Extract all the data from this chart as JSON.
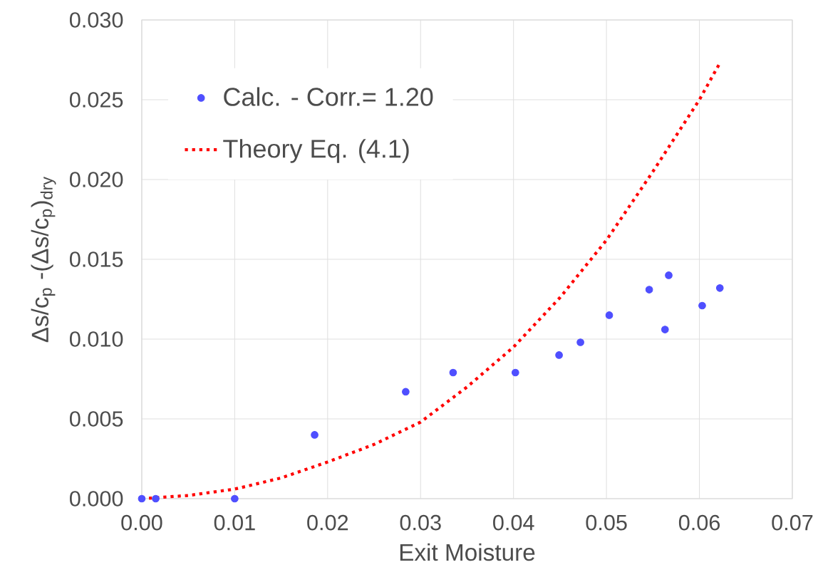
{
  "chart_data": {
    "type": "scatter",
    "xlabel": "Exit Moisture",
    "ylabel": "Δs/c$_{p}$ -(Δs/c$_{p}$)$_{dry}$",
    "xlim": [
      0,
      0.07
    ],
    "ylim": [
      0,
      0.03
    ],
    "xticks": [
      {
        "value": 0,
        "label": "0.00"
      },
      {
        "value": 0.01,
        "label": "0.01"
      },
      {
        "value": 0.02,
        "label": "0.02"
      },
      {
        "value": 0.03,
        "label": "0.03"
      },
      {
        "value": 0.04,
        "label": "0.04"
      },
      {
        "value": 0.05,
        "label": "0.05"
      },
      {
        "value": 0.06,
        "label": "0.06"
      },
      {
        "value": 0.07,
        "label": "0.07"
      }
    ],
    "yticks": [
      {
        "value": 0,
        "label": "0.000"
      },
      {
        "value": 0.005,
        "label": "0.005"
      },
      {
        "value": 0.01,
        "label": "0.010"
      },
      {
        "value": 0.015,
        "label": "0.015"
      },
      {
        "value": 0.02,
        "label": "0.020"
      },
      {
        "value": 0.025,
        "label": "0.025"
      },
      {
        "value": 0.03,
        "label": "0.030"
      }
    ],
    "grid": true,
    "legend": "top left",
    "series": [
      {
        "name": "Calc. - Corr.= 1.20",
        "marker": "circle",
        "color": "#4f4fff",
        "x": [
          0.0,
          0.0015,
          0.01,
          0.0186,
          0.0284,
          0.0335,
          0.0402,
          0.0449,
          0.0472,
          0.0503,
          0.0546,
          0.0563,
          0.0567,
          0.0603,
          0.0622
        ],
        "values": [
          0.0,
          0.0,
          0.0,
          0.004,
          0.0067,
          0.0079,
          0.0079,
          0.009,
          0.0098,
          0.0115,
          0.0131,
          0.0106,
          0.014,
          0.0121,
          0.0132
        ]
      },
      {
        "name": "Theory Eq. (4.1)",
        "type": "line",
        "marker": "none",
        "line_style": "dotted",
        "color": "#ff0000",
        "x": [
          0.0,
          0.005,
          0.01,
          0.015,
          0.02,
          0.025,
          0.03,
          0.035,
          0.04,
          0.045,
          0.05,
          0.055,
          0.06,
          0.0622
        ],
        "values": [
          0.0,
          0.0002,
          0.0006,
          0.0013,
          0.0023,
          0.0034,
          0.0048,
          0.007,
          0.0095,
          0.0126,
          0.0162,
          0.0205,
          0.025,
          0.0273
        ]
      }
    ]
  }
}
